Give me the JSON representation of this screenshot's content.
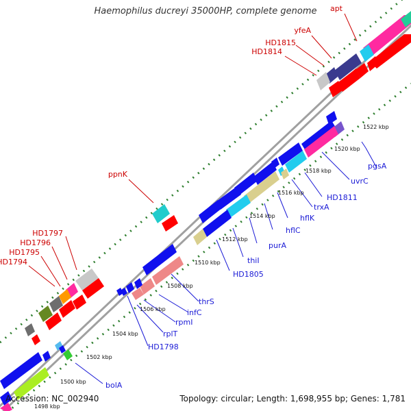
{
  "title": "Haemophilus ducreyi 35000HP, complete genome",
  "footer": {
    "accession_label": "Accession: NC_002940",
    "summary_label": "Topology: circular; Length: 1,698,955 bp; Genes: 1,781"
  },
  "scale_labels": [
    "1498 kbp",
    "1500 kbp",
    "1502 kbp",
    "1504 kbp",
    "1506 kbp",
    "1508 kbp",
    "1510 kbp",
    "1512 kbp",
    "1514 kbp",
    "1516 kbp",
    "1518 kbp",
    "1520 kbp",
    "1522 kbp"
  ],
  "gene_labels_forward": [
    "apt",
    "yfeA",
    "HD1815",
    "HD1814",
    "ppnK",
    "HD1797",
    "HD1796",
    "HD1795",
    "HD1794"
  ],
  "gene_labels_reverse": [
    "bolA",
    "HD1798",
    "rplT",
    "rpmI",
    "infC",
    "thrS",
    "HD1805",
    "thiI",
    "purA",
    "hflC",
    "hflK",
    "trxA",
    "HD1811",
    "uvrC",
    "pgsA"
  ],
  "colors": {
    "forward_label": "#cc0000",
    "reverse_label": "#1a1ad6",
    "backbone": "#9a9a9a",
    "tick": "#2d7d2d",
    "blue": "#1010ee",
    "red": "#ff0000",
    "pink": "#ff2aa0",
    "cyan": "#22ccee",
    "teal": "#22cccc",
    "tan": "#d9cf8e",
    "navy": "#3a3a8e",
    "purple": "#7755cc",
    "salmon": "#ee8888",
    "grey": "#c8c8c8",
    "dark_grey": "#6e6e6e",
    "olive": "#668822",
    "orange": "#ff9900",
    "lime": "#aaee22",
    "green": "#33cc33",
    "teal_green": "#22bb99",
    "light_blue": "#55bbee"
  }
}
